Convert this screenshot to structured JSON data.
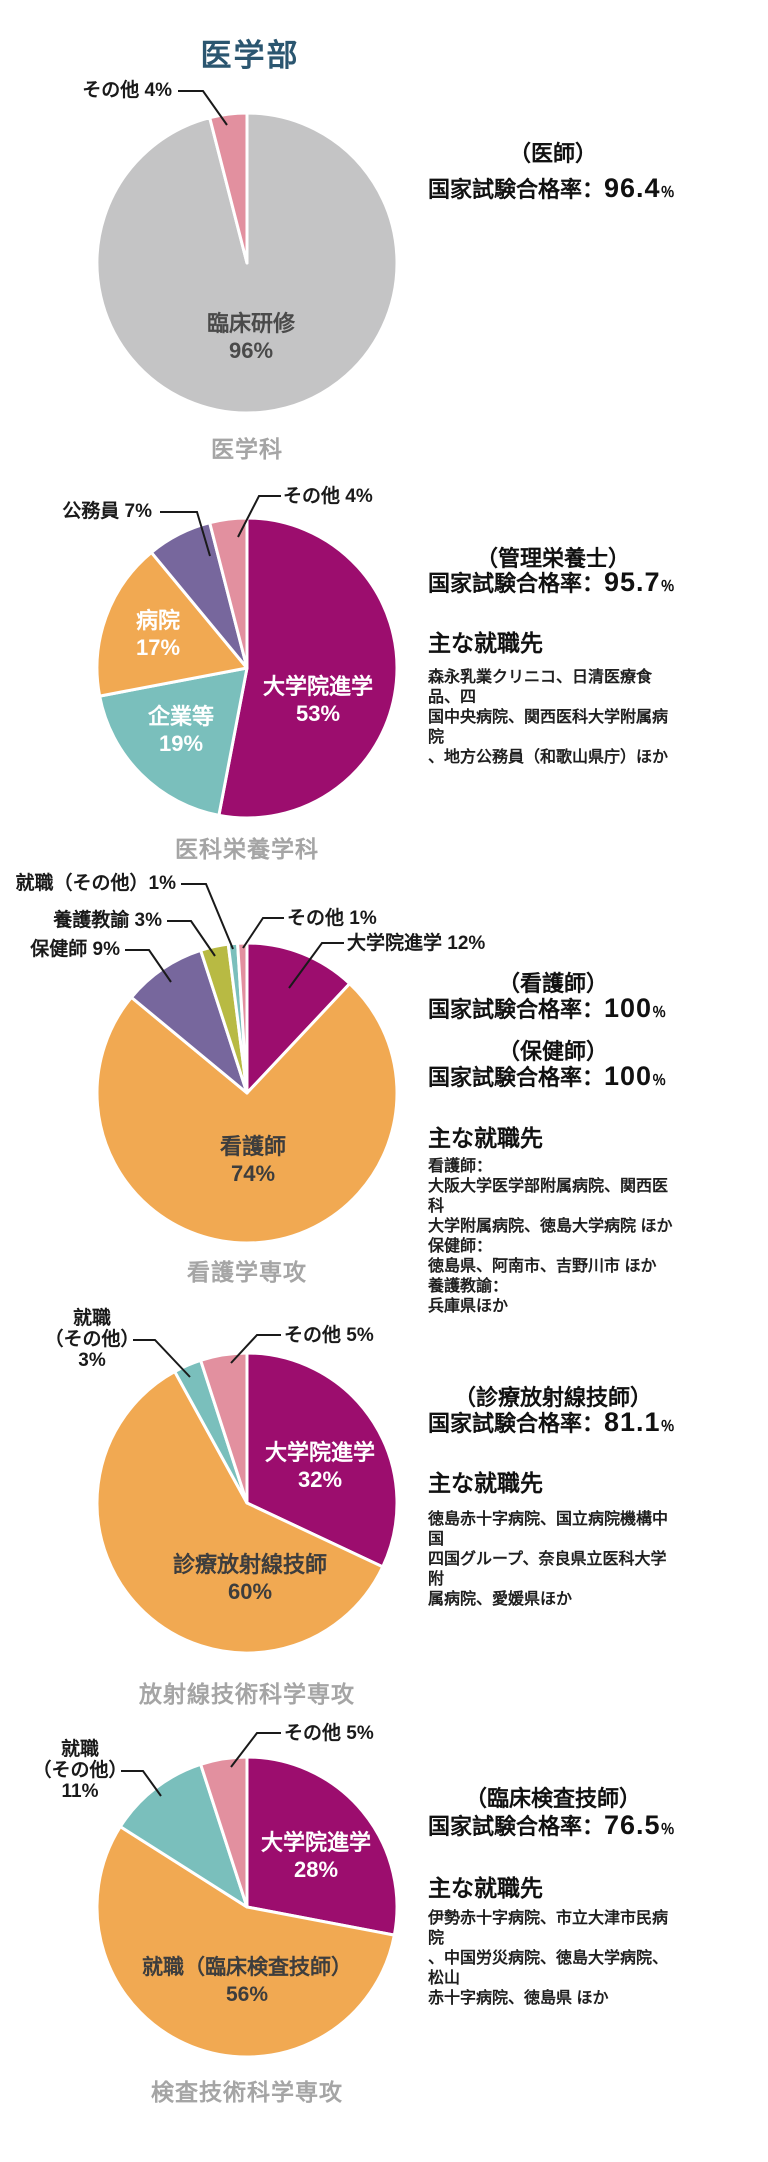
{
  "title": "医学部",
  "colors": {
    "magenta": "#9c0d6e",
    "orange": "#f1a952",
    "teal": "#7abfbc",
    "purple": "#77679d",
    "pink": "#e2909f",
    "olive": "#b8ba43",
    "gray": "#c4c4c5",
    "title_blue": "#2b5670",
    "caption_gray": "#a5a5a5"
  },
  "sections": [
    {
      "caption": "医学科",
      "license": "（医師）",
      "rate_label": "国家試験合格率：",
      "rate_value": "96.4",
      "rate_unit": "％"
    },
    {
      "caption": "医科栄養学科",
      "license": "（管理栄養士）",
      "rate_label": "国家試験合格率：",
      "rate_value": "95.7",
      "rate_unit": "％",
      "employers_heading": "主な就職先",
      "employers": "森永乳業クリニコ、日清医療食品、四\n国中央病院、関西医科大学附属病院\n、地方公務員（和歌山県庁）ほか"
    },
    {
      "caption": "看護学専攻",
      "license": "（看護師）",
      "rate_label": "国家試験合格率：",
      "rate_value": "100",
      "rate_unit": "％",
      "license2": "（保健師）",
      "rate2_label": "国家試験合格率：",
      "rate2_value": "100",
      "rate2_unit": "％",
      "employers_heading": "主な就職先",
      "employers": "看護師：\n大阪大学医学部附属病院、関西医科\n大学附属病院、徳島大学病院 ほか\n保健師：\n徳島県、阿南市、吉野川市 ほか\n養護教諭：\n兵庫県ほか"
    },
    {
      "caption": "放射線技術科学専攻",
      "license": "（診療放射線技師）",
      "rate_label": "国家試験合格率：",
      "rate_value": "81.1",
      "rate_unit": "％",
      "employers_heading": "主な就職先",
      "employers": "徳島赤十字病院、国立病院機構中国\n四国グループ、奈良県立医科大学附\n属病院、愛媛県ほか"
    },
    {
      "caption": "検査技術科学専攻",
      "license": "（臨床検査技師）",
      "rate_label": "国家試験合格率：",
      "rate_value": "76.5",
      "rate_unit": "％",
      "employers_heading": "主な就職先",
      "employers": "伊勢赤十字病院、市立大津市民病院\n、中国労災病院、徳島大学病院、松山\n赤十字病院、徳島県 ほか"
    }
  ],
  "chart_data": [
    {
      "type": "pie",
      "title": "医学科",
      "slices": [
        {
          "label": "臨床研修",
          "value": 96,
          "display": "臨床研修\n96%",
          "color": "#c4c4c5"
        },
        {
          "label": "その他",
          "value": 4,
          "display": "その他 4%",
          "color": "#e2909f"
        }
      ]
    },
    {
      "type": "pie",
      "title": "医科栄養学科",
      "slices": [
        {
          "label": "大学院進学",
          "value": 53,
          "display": "大学院進学\n53%",
          "color": "#9c0d6e"
        },
        {
          "label": "企業等",
          "value": 19,
          "display": "企業等\n19%",
          "color": "#7abfbc"
        },
        {
          "label": "病院",
          "value": 17,
          "display": "病院\n17%",
          "color": "#f1a952"
        },
        {
          "label": "公務員",
          "value": 7,
          "display": "公務員 7%",
          "color": "#77679d"
        },
        {
          "label": "その他",
          "value": 4,
          "display": "その他 4%",
          "color": "#e2909f"
        }
      ]
    },
    {
      "type": "pie",
      "title": "看護学専攻",
      "slices": [
        {
          "label": "大学院進学",
          "value": 12,
          "display": "大学院進学 12%",
          "color": "#9c0d6e"
        },
        {
          "label": "看護師",
          "value": 74,
          "display": "看護師\n74%",
          "color": "#f1a952"
        },
        {
          "label": "保健師",
          "value": 9,
          "display": "保健師 9%",
          "color": "#77679d"
        },
        {
          "label": "養護教諭",
          "value": 3,
          "display": "養護教諭 3%",
          "color": "#b8ba43"
        },
        {
          "label": "就職（その他）",
          "value": 1,
          "display": "就職（その他）1%",
          "color": "#7abfbc"
        },
        {
          "label": "その他",
          "value": 1,
          "display": "その他 1%",
          "color": "#e2909f"
        }
      ]
    },
    {
      "type": "pie",
      "title": "放射線技術科学専攻",
      "slices": [
        {
          "label": "大学院進学",
          "value": 32,
          "display": "大学院進学\n32%",
          "color": "#9c0d6e"
        },
        {
          "label": "診療放射線技師",
          "value": 60,
          "display": "診療放射線技師\n60%",
          "color": "#f1a952"
        },
        {
          "label": "就職（その他）",
          "value": 3,
          "display": "就職\n（その他）\n3%",
          "color": "#7abfbc"
        },
        {
          "label": "その他",
          "value": 5,
          "display": "その他 5%",
          "color": "#e2909f"
        }
      ]
    },
    {
      "type": "pie",
      "title": "検査技術科学専攻",
      "slices": [
        {
          "label": "大学院進学",
          "value": 28,
          "display": "大学院進学\n28%",
          "color": "#9c0d6e"
        },
        {
          "label": "就職（臨床検査技師）",
          "value": 56,
          "display": "就職（臨床検査技師）\n56%",
          "color": "#f1a952"
        },
        {
          "label": "就職（その他）",
          "value": 11,
          "display": "就職\n（その他）\n11%",
          "color": "#7abfbc"
        },
        {
          "label": "その他",
          "value": 5,
          "display": "その他 5%",
          "color": "#e2909f"
        }
      ]
    }
  ]
}
